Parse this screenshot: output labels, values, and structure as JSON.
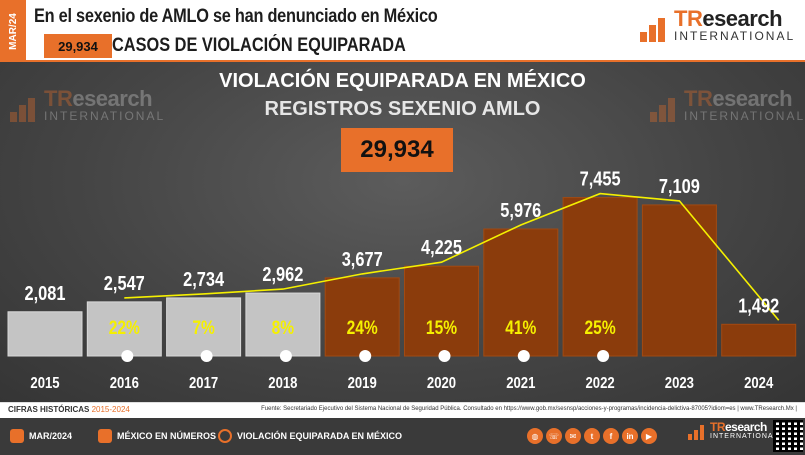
{
  "header": {
    "date_tab": "MAR/24",
    "headline": "En el sexenio de AMLO se han denunciado en México",
    "total_badge": "29,934",
    "subheadline": "CASOS DE VIOLACIÓN EQUIPARADA",
    "logo_brand_1": "TR",
    "logo_brand_2": "esearch",
    "logo_sub": "INTERNATIONAL"
  },
  "chart_data": {
    "type": "bar",
    "title": "VIOLACIÓN EQUIPARADA EN MÉXICO",
    "subtitle": "REGISTROS SEXENIO AMLO",
    "total_label": "29,934",
    "categories": [
      "2015",
      "2016",
      "2017",
      "2018",
      "2019",
      "2020",
      "2021",
      "2022",
      "2023",
      "2024"
    ],
    "values": [
      2081,
      2547,
      2734,
      2962,
      3677,
      4225,
      5976,
      7455,
      7109,
      1492
    ],
    "value_labels": [
      "2,081",
      "2,547",
      "2,734",
      "2,962",
      "3,677",
      "4,225",
      "5,976",
      "7,455",
      "7,109",
      "1,492"
    ],
    "growth_labels": [
      "",
      "22%",
      "7%",
      "8%",
      "24%",
      "15%",
      "41%",
      "25%",
      "",
      ""
    ],
    "trend_line": true,
    "ylim": [
      0,
      8000
    ],
    "colors": {
      "historic_bar": "#c4c4c4",
      "amlo_bar": "#8b3c0c",
      "trend": "#f5f000",
      "growth_text": "#f5f000",
      "value_text": "#ffffff"
    }
  },
  "footer": {
    "cifras_label": "CIFRAS HISTÓRICAS",
    "cifras_years": "2015-2024",
    "fuente": "Fuente: Secretariado Ejecutivo del Sistema Nacional de Seguridad Pública. Consultado en https://www.gob.mx/sesnsp/acciones-y-programas/incidencia-delictiva-87005?idiom=es | www.TResearch.Mx |",
    "items": [
      "MAR/2024",
      "MÉXICO EN NÚMEROS",
      "VIOLACIÓN EQUIPARADA EN MÉXICO"
    ]
  },
  "icons": [
    "calendar-icon",
    "map-pin-icon",
    "fingerprint-icon",
    "globe-icon",
    "phone-icon",
    "mail-icon",
    "twitter-icon",
    "facebook-icon",
    "linkedin-icon",
    "youtube-icon",
    "qr-code-icon"
  ]
}
